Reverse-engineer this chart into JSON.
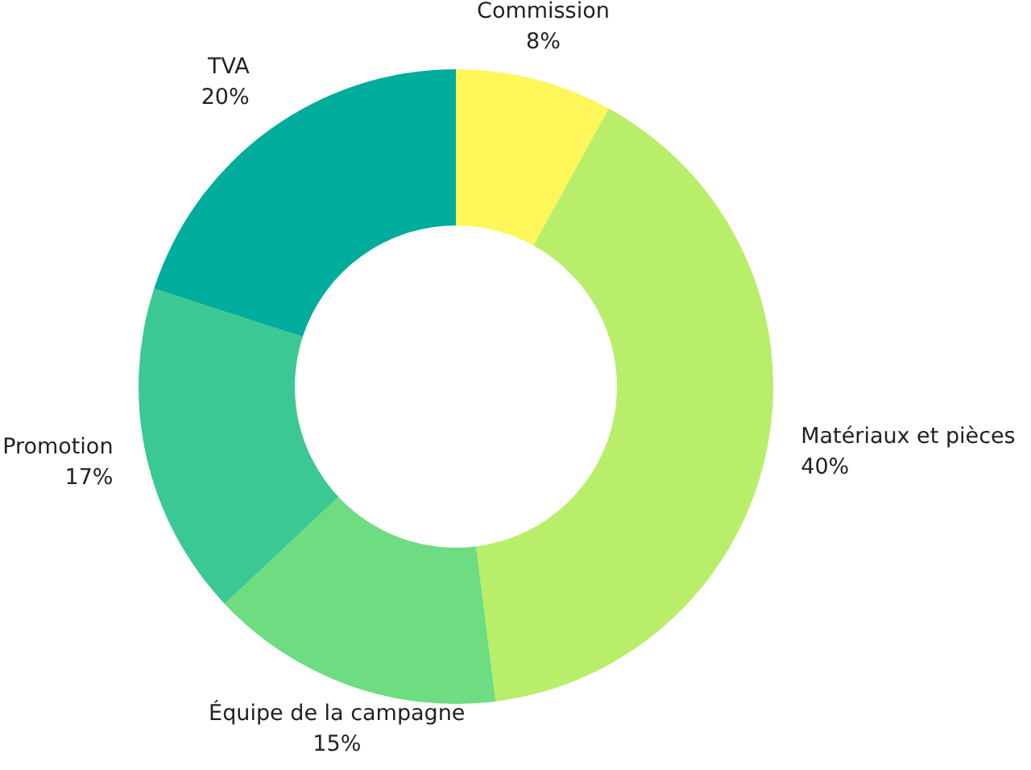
{
  "chart_data": {
    "type": "donut",
    "categories": [
      "Commission",
      "Matériaux et pièces",
      "Équipe de la campagne",
      "Promotion",
      "TVA"
    ],
    "values": [
      8,
      40,
      15,
      17,
      20
    ],
    "value_labels": [
      "8%",
      "40%",
      "15%",
      "17%",
      "20%"
    ],
    "colors": [
      "#fff65a",
      "#b8ee6a",
      "#6edc80",
      "#3cc892",
      "#00ac9c"
    ]
  }
}
